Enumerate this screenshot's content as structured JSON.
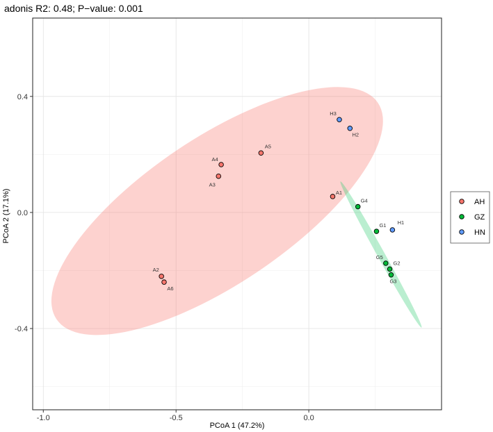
{
  "chart_data": {
    "type": "scatter",
    "title": "adonis R2: 0.48; P−value: 0.001",
    "xlabel": "PCoA 1 (47.2%)",
    "ylabel": "PCoA 2 (17.1%)",
    "xlim": [
      -1.04,
      0.5
    ],
    "ylim": [
      -0.68,
      0.67
    ],
    "xticks": [
      -1.0,
      -0.5,
      0.0
    ],
    "xtick_labels": [
      "-1.0",
      "-0.5",
      "0.0"
    ],
    "yticks": [
      -0.4,
      0.0,
      0.4
    ],
    "ytick_labels": [
      "-0.4",
      "0.0",
      "0.4"
    ],
    "grid": true,
    "legend_position": "right",
    "series": [
      {
        "name": "AH",
        "color": "#f8766d",
        "ellipse_fill": "#f8766d",
        "points": [
          {
            "label": "A1",
            "x": 0.09,
            "y": 0.055
          },
          {
            "label": "A2",
            "x": -0.555,
            "y": -0.22
          },
          {
            "label": "A3",
            "x": -0.34,
            "y": 0.125
          },
          {
            "label": "A4",
            "x": -0.33,
            "y": 0.165
          },
          {
            "label": "A5",
            "x": -0.18,
            "y": 0.205
          },
          {
            "label": "A6",
            "x": -0.545,
            "y": -0.24
          }
        ],
        "ellipse": {
          "cx": -0.345,
          "cy": 0.005,
          "rx": 0.73,
          "ry": 0.275,
          "angle_deg": 34
        }
      },
      {
        "name": "GZ",
        "color": "#00ba38",
        "ellipse_fill": "#2ecc71",
        "points": [
          {
            "label": "G1",
            "x": 0.255,
            "y": -0.065
          },
          {
            "label": "G2",
            "x": 0.305,
            "y": -0.195
          },
          {
            "label": "G3",
            "x": 0.31,
            "y": -0.215
          },
          {
            "label": "G4",
            "x": 0.185,
            "y": 0.02
          },
          {
            "label": "G5",
            "x": 0.29,
            "y": -0.175
          }
        ],
        "ellipse": {
          "cx": 0.272,
          "cy": -0.145,
          "rx": 0.315,
          "ry": 0.014,
          "angle_deg": -61
        }
      },
      {
        "name": "HN",
        "color": "#619cff",
        "points": [
          {
            "label": "H1",
            "x": 0.315,
            "y": -0.06
          },
          {
            "label": "H2",
            "x": 0.155,
            "y": 0.29
          },
          {
            "label": "H3",
            "x": 0.115,
            "y": 0.32
          }
        ]
      }
    ]
  }
}
